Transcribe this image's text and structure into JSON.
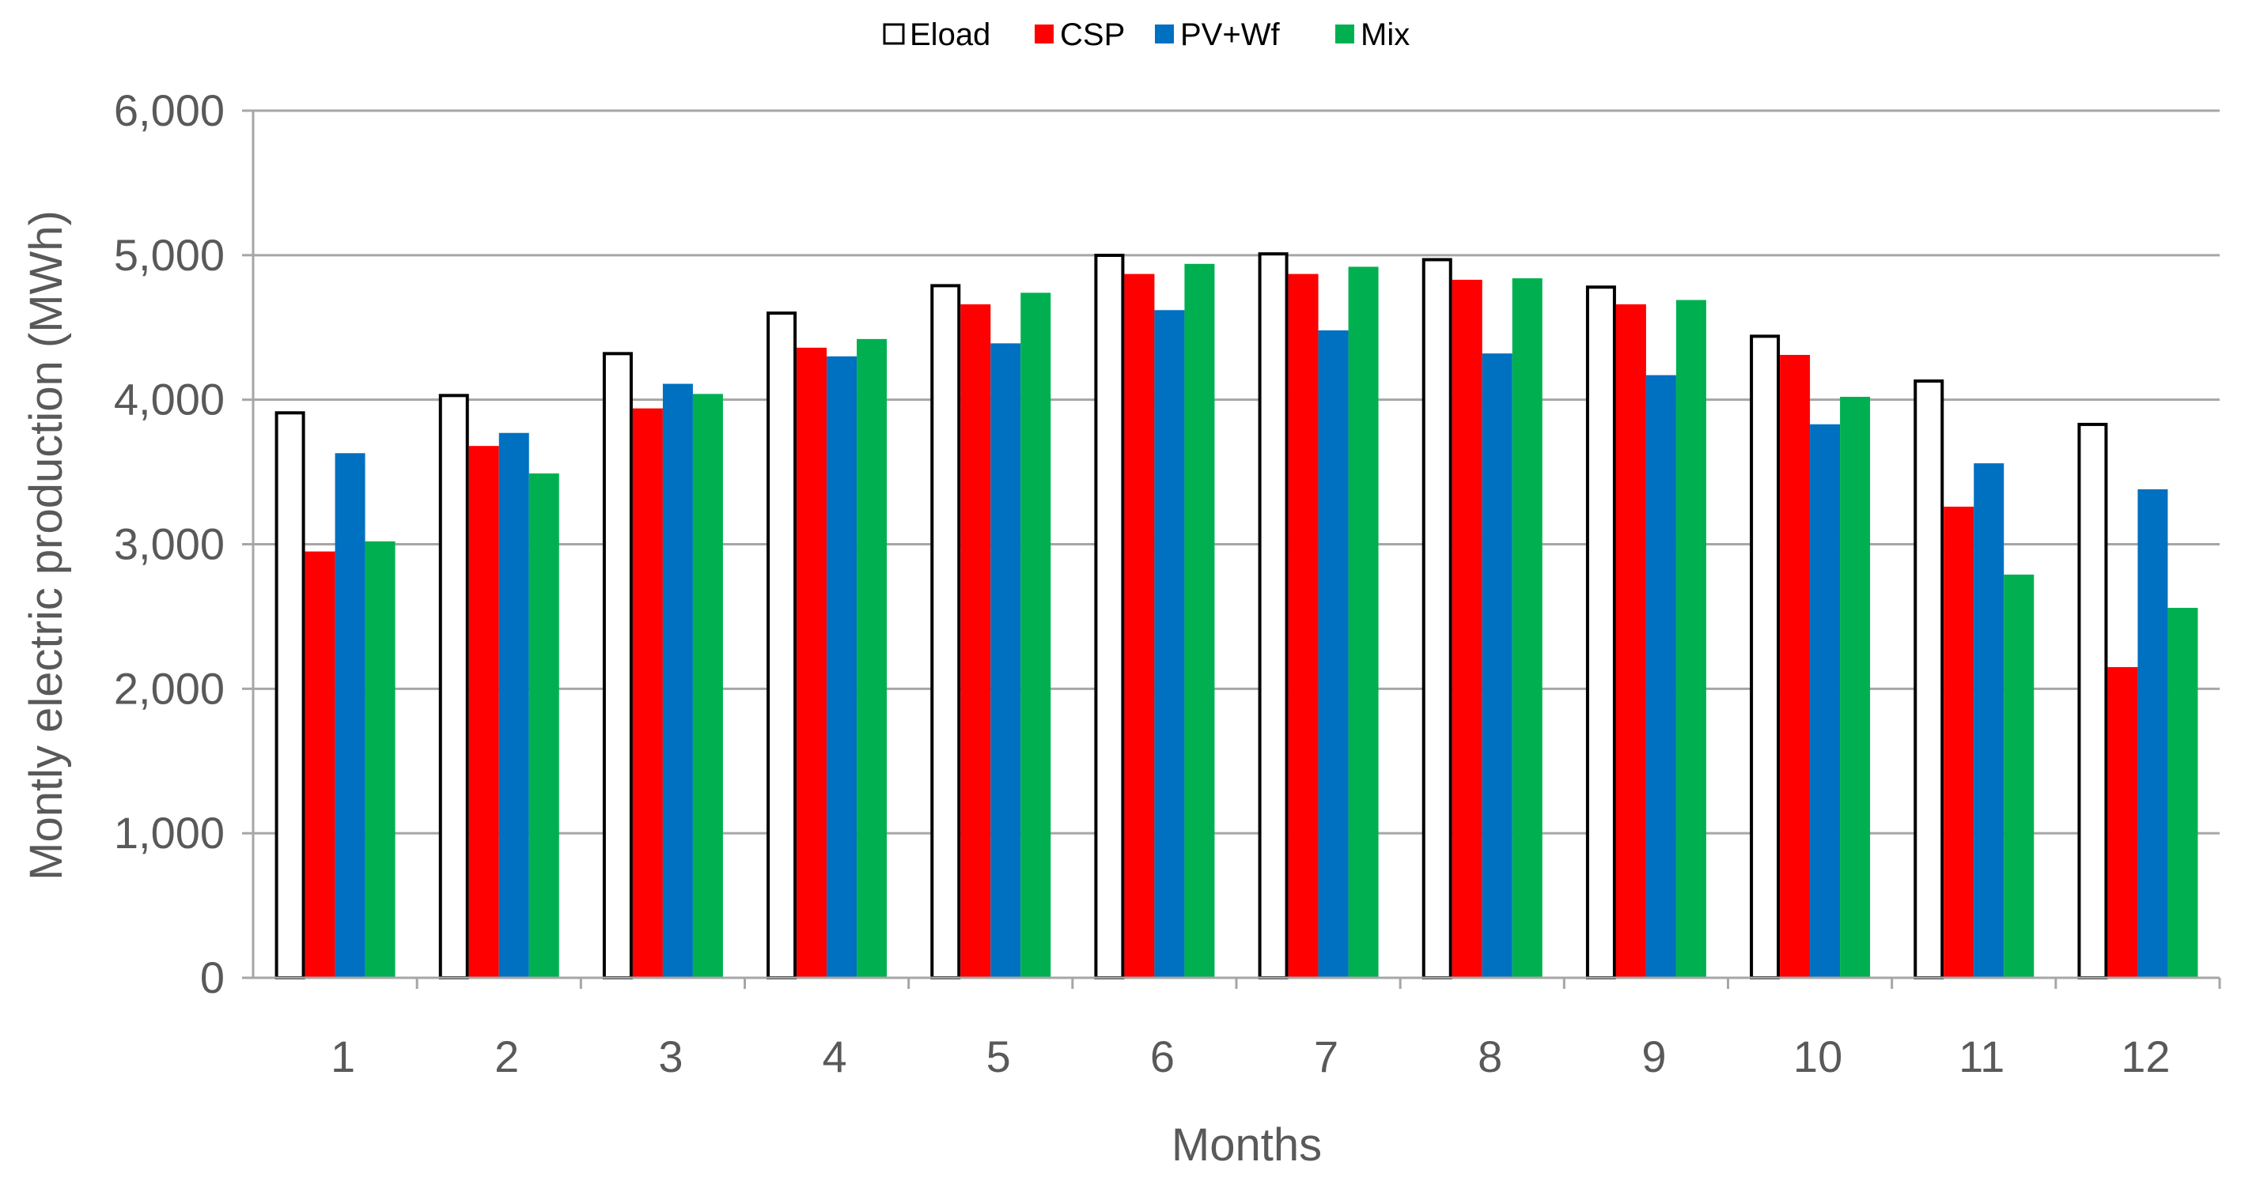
{
  "chart_data": {
    "type": "bar",
    "title": "",
    "xlabel": "Months",
    "ylabel": "Montly electric production (MWh)",
    "ylim": [
      0,
      6000
    ],
    "yticks": [
      "0",
      "1,000",
      "2,000",
      "3,000",
      "4,000",
      "5,000",
      "6,000"
    ],
    "ytick_values": [
      0,
      1000,
      2000,
      3000,
      4000,
      5000,
      6000
    ],
    "grid": true,
    "legend_position": "top",
    "categories": [
      "1",
      "2",
      "3",
      "4",
      "5",
      "6",
      "7",
      "8",
      "9",
      "10",
      "11",
      "12"
    ],
    "series": [
      {
        "name": "Eload",
        "color": "#ffffff",
        "stroke": "#000000",
        "values": [
          3920,
          4040,
          4330,
          4610,
          4800,
          5010,
          5020,
          4980,
          4790,
          4450,
          4140,
          3840
        ]
      },
      {
        "name": "CSP",
        "color": "#ff0000",
        "values": [
          2950,
          3680,
          3940,
          4360,
          4660,
          4870,
          4870,
          4830,
          4660,
          4310,
          3260,
          2150
        ]
      },
      {
        "name": "PV+Wf",
        "color": "#0070c0",
        "values": [
          3630,
          3770,
          4110,
          4300,
          4390,
          4620,
          4480,
          4320,
          4170,
          3830,
          3560,
          3380
        ]
      },
      {
        "name": "Mix",
        "color": "#00b050",
        "values": [
          3020,
          3490,
          4040,
          4420,
          4740,
          4940,
          4920,
          4840,
          4690,
          4020,
          2790,
          2560
        ]
      }
    ]
  }
}
